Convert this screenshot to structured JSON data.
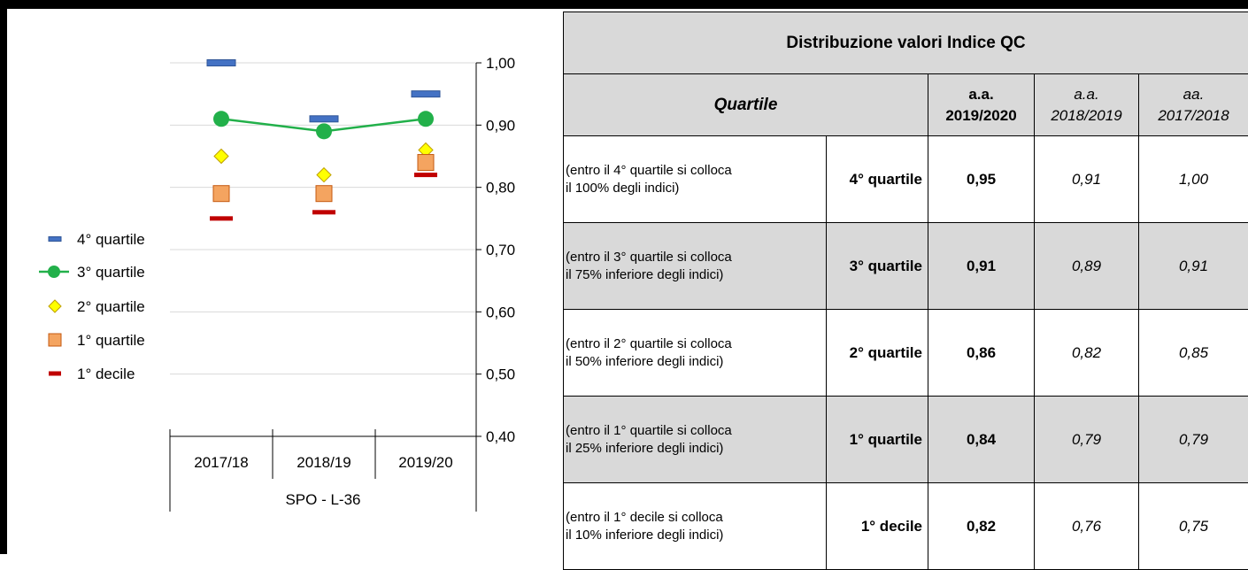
{
  "chart_data": {
    "type": "scatter",
    "categories": [
      "2017/18",
      "2018/19",
      "2019/20"
    ],
    "group_label": "SPO - L-36",
    "y_ticks": [
      "1,00",
      "0,90",
      "0,80",
      "0,70",
      "0,60",
      "0,50",
      "0,40"
    ],
    "ylim": [
      0.4,
      1.0
    ],
    "grid": true,
    "legend_position": "left",
    "series": [
      {
        "name": "4° quartile",
        "marker": "dash",
        "color": "#4472c4",
        "values": [
          1.0,
          0.91,
          0.95
        ]
      },
      {
        "name": "3° quartile",
        "marker": "circle-line",
        "color": "#22b04a",
        "values": [
          0.91,
          0.89,
          0.91
        ]
      },
      {
        "name": "2° quartile",
        "marker": "diamond",
        "color": "#ffff00",
        "values": [
          0.85,
          0.82,
          0.86
        ]
      },
      {
        "name": "1° quartile",
        "marker": "square",
        "color": "#f4a460",
        "values": [
          0.79,
          0.79,
          0.84
        ]
      },
      {
        "name": "1° decile",
        "marker": "dash",
        "color": "#c00000",
        "values": [
          0.75,
          0.76,
          0.82
        ]
      }
    ]
  },
  "table": {
    "title": "Distribuzione valori Indice QC",
    "quartile_header": "Quartile",
    "columns": [
      {
        "line1": "a.a.",
        "line2": "2019/2020"
      },
      {
        "line1": "a.a.",
        "line2": "2018/2019"
      },
      {
        "line1": "aa.",
        "line2": "2017/2018"
      }
    ],
    "rows": [
      {
        "desc1": "(entro il 4° quartile si colloca",
        "desc2": " il 100% degli indici)",
        "name": "4° quartile",
        "v2019": "0,95",
        "v2018": "0,91",
        "v2017": "1,00"
      },
      {
        "desc1": "(entro il 3° quartile si colloca",
        "desc2": " il 75% inferiore degli indici)",
        "name": "3° quartile",
        "v2019": "0,91",
        "v2018": "0,89",
        "v2017": "0,91"
      },
      {
        "desc1": "(entro il 2° quartile si colloca",
        "desc2": " il 50% inferiore degli indici)",
        "name": "2° quartile",
        "v2019": "0,86",
        "v2018": "0,82",
        "v2017": "0,85"
      },
      {
        "desc1": "(entro il 1° quartile si colloca",
        "desc2": " il 25% inferiore degli indici)",
        "name": "1° quartile",
        "v2019": "0,84",
        "v2018": "0,79",
        "v2017": "0,79"
      },
      {
        "desc1": "(entro il 1° decile si colloca",
        "desc2": " il 10% inferiore degli indici)",
        "name": "1° decile",
        "v2019": "0,82",
        "v2018": "0,76",
        "v2017": "0,75"
      }
    ]
  }
}
